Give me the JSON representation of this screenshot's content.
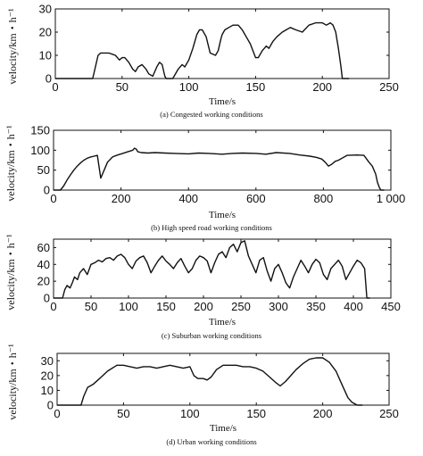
{
  "chart_data": [
    {
      "type": "line",
      "caption": "(a) Congested working conditions",
      "xlabel": "Time/s",
      "ylabel": "velocity/km・h⁻¹",
      "xlim": [
        0,
        250
      ],
      "ylim": [
        0,
        30
      ],
      "xticks": [
        0,
        50,
        100,
        150,
        200,
        250
      ],
      "yticks": [
        0,
        10,
        20,
        30
      ],
      "xtick_labels": [
        "0",
        "50",
        "100",
        "150",
        "200",
        "250"
      ],
      "ytick_labels": [
        "0",
        "10",
        "20",
        "30"
      ],
      "series": [
        {
          "x": [
            0,
            28,
            30,
            32,
            34,
            36,
            40,
            45,
            48,
            50,
            52,
            55,
            58,
            60,
            62,
            65,
            68,
            70,
            73,
            76,
            78,
            80,
            82,
            83,
            84,
            88,
            92,
            95,
            97,
            100,
            103,
            106,
            108,
            110,
            113,
            116,
            120,
            122,
            124,
            125,
            127,
            130,
            133,
            137,
            140,
            143,
            146,
            148,
            150,
            152,
            155,
            158,
            160,
            163,
            166,
            170,
            173,
            176,
            180,
            185,
            190,
            195,
            200,
            203,
            206,
            208,
            210,
            212,
            214,
            215,
            217,
            220
          ],
          "y": [
            0,
            0,
            5,
            10,
            11,
            11,
            11,
            10,
            8,
            9,
            9,
            7,
            4,
            3,
            5,
            6,
            4,
            2,
            1,
            5,
            7,
            6,
            1,
            0,
            0,
            0,
            4,
            6,
            5,
            8,
            13,
            19,
            21,
            21,
            18,
            11,
            10,
            12,
            17,
            19,
            21,
            22,
            23,
            23,
            21,
            18,
            15,
            12,
            9,
            9,
            12,
            14,
            13,
            16,
            18,
            20,
            21,
            22,
            21,
            20,
            23,
            24,
            24,
            23,
            24,
            23,
            20,
            13,
            5,
            0,
            0,
            0
          ]
        }
      ]
    },
    {
      "type": "line",
      "caption": "(b) High speed road working conditions",
      "xlabel": "Time/s",
      "ylabel": "velocity/km・h⁻¹",
      "xlim": [
        0,
        1000
      ],
      "ylim": [
        0,
        150
      ],
      "xticks": [
        0,
        200,
        400,
        600,
        800,
        1000
      ],
      "yticks": [
        0,
        50,
        100,
        150
      ],
      "xtick_labels": [
        "0",
        "200",
        "400",
        "600",
        "800",
        "1 000"
      ],
      "ytick_labels": [
        "0",
        "50",
        "100",
        "150"
      ],
      "series": [
        {
          "x": [
            0,
            20,
            30,
            40,
            50,
            60,
            70,
            80,
            90,
            100,
            110,
            120,
            125,
            130,
            140,
            150,
            160,
            175,
            190,
            205,
            220,
            235,
            240,
            245,
            250,
            260,
            280,
            300,
            330,
            360,
            400,
            430,
            460,
            500,
            530,
            560,
            600,
            630,
            660,
            700,
            730,
            760,
            780,
            795,
            805,
            815,
            825,
            835,
            845,
            855,
            870,
            900,
            920,
            935,
            945,
            955,
            960,
            965,
            970,
            980
          ],
          "y": [
            0,
            0,
            10,
            25,
            38,
            50,
            60,
            68,
            75,
            80,
            83,
            85,
            86,
            87,
            30,
            50,
            70,
            83,
            88,
            92,
            96,
            100,
            105,
            103,
            96,
            94,
            93,
            94,
            93,
            92,
            91,
            93,
            92,
            90,
            92,
            93,
            92,
            90,
            94,
            92,
            88,
            85,
            82,
            78,
            70,
            60,
            65,
            72,
            75,
            80,
            87,
            88,
            87,
            70,
            60,
            40,
            20,
            8,
            0,
            0
          ]
        }
      ]
    },
    {
      "type": "line",
      "caption": "(c) Suburban working conditions",
      "xlabel": "Time/s",
      "ylabel": "velocity/km・h⁻¹",
      "xlim": [
        0,
        450
      ],
      "ylim": [
        0,
        70
      ],
      "xticks": [
        0,
        50,
        100,
        150,
        200,
        250,
        300,
        350,
        400,
        450
      ],
      "yticks": [
        0,
        20,
        40,
        60
      ],
      "xtick_labels": [
        "0",
        "50",
        "100",
        "150",
        "200",
        "250",
        "300",
        "350",
        "400",
        "450"
      ],
      "ytick_labels": [
        "0",
        "20",
        "40",
        "60"
      ],
      "series": [
        {
          "x": [
            0,
            12,
            15,
            18,
            22,
            25,
            28,
            32,
            35,
            40,
            45,
            50,
            55,
            60,
            65,
            70,
            75,
            80,
            85,
            90,
            95,
            100,
            105,
            110,
            115,
            120,
            125,
            130,
            135,
            140,
            145,
            150,
            155,
            160,
            165,
            170,
            175,
            180,
            185,
            190,
            195,
            200,
            205,
            210,
            215,
            220,
            225,
            230,
            235,
            240,
            245,
            250,
            255,
            260,
            265,
            270,
            275,
            280,
            285,
            290,
            295,
            300,
            305,
            310,
            315,
            320,
            325,
            330,
            335,
            340,
            345,
            350,
            355,
            360,
            365,
            370,
            375,
            380,
            385,
            390,
            395,
            400,
            405,
            410,
            415,
            418,
            422
          ],
          "y": [
            0,
            0,
            10,
            15,
            12,
            18,
            25,
            22,
            30,
            35,
            28,
            40,
            42,
            45,
            43,
            47,
            48,
            45,
            50,
            52,
            48,
            40,
            35,
            44,
            48,
            50,
            42,
            30,
            38,
            45,
            50,
            44,
            40,
            35,
            42,
            47,
            38,
            30,
            35,
            45,
            50,
            48,
            44,
            30,
            42,
            52,
            55,
            48,
            60,
            64,
            55,
            66,
            68,
            50,
            40,
            30,
            45,
            48,
            32,
            20,
            35,
            40,
            30,
            18,
            12,
            25,
            35,
            45,
            38,
            30,
            40,
            46,
            42,
            28,
            22,
            35,
            40,
            45,
            38,
            22,
            30,
            38,
            45,
            42,
            35,
            0,
            0
          ]
        }
      ]
    },
    {
      "type": "line",
      "caption": "(d) Urban working conditions",
      "xlabel": "Time/s",
      "ylabel": "velocity/km・h⁻¹",
      "xlim": [
        0,
        250
      ],
      "ylim": [
        0,
        35
      ],
      "xticks": [
        0,
        50,
        100,
        150,
        200,
        250
      ],
      "yticks": [
        0,
        10,
        20,
        30
      ],
      "xtick_labels": [
        "0",
        "50",
        "100",
        "150",
        "200",
        "250"
      ],
      "ytick_labels": [
        "0",
        "10",
        "20",
        "30"
      ],
      "series": [
        {
          "x": [
            0,
            18,
            20,
            23,
            27,
            32,
            38,
            45,
            50,
            55,
            60,
            65,
            70,
            75,
            80,
            85,
            90,
            95,
            100,
            103,
            106,
            110,
            113,
            116,
            120,
            125,
            130,
            135,
            140,
            145,
            150,
            155,
            160,
            165,
            168,
            172,
            176,
            180,
            185,
            190,
            195,
            200,
            205,
            210,
            213,
            216,
            219,
            222,
            226,
            230
          ],
          "y": [
            0,
            0,
            6,
            12,
            14,
            18,
            23,
            27,
            27,
            26,
            25,
            26,
            26,
            25,
            26,
            27,
            26,
            25,
            26,
            20,
            18,
            18,
            17,
            19,
            24,
            27,
            27,
            27,
            26,
            26,
            25,
            23,
            19,
            15,
            13,
            16,
            20,
            24,
            28,
            31,
            32,
            32,
            29,
            23,
            17,
            11,
            5,
            2,
            0,
            0
          ]
        }
      ]
    }
  ]
}
